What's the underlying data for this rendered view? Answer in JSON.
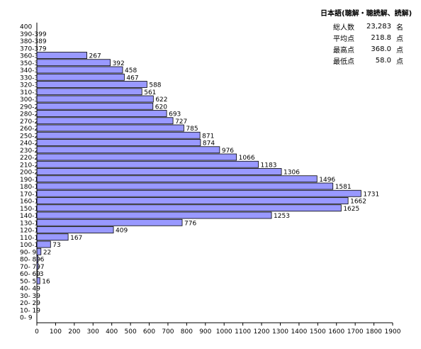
{
  "stats": {
    "title": "日本語(聴解・聴読解、読解)",
    "rows": [
      {
        "label": "総人数",
        "value": "23,283",
        "unit": "名"
      },
      {
        "label": "平均点",
        "value": "218.8",
        "unit": "点"
      },
      {
        "label": "最高点",
        "value": "368.0",
        "unit": "点"
      },
      {
        "label": "最低点",
        "value": "58.0",
        "unit": "点"
      }
    ]
  },
  "chart_data": {
    "type": "bar",
    "orientation": "horizontal",
    "title": "",
    "xlabel": "",
    "ylabel": "",
    "xlim": [
      0,
      1900
    ],
    "xticks": [
      0,
      100,
      200,
      300,
      400,
      500,
      600,
      700,
      800,
      900,
      1000,
      1100,
      1200,
      1300,
      1400,
      1500,
      1600,
      1700,
      1800,
      1900
    ],
    "grid": false,
    "bar_color": "#9999ff",
    "bar_stroke": "#000000",
    "categories": [
      "400",
      "390-399",
      "380-389",
      "370-379",
      "360-369",
      "350-359",
      "340-349",
      "330-339",
      "320-329",
      "310-319",
      "300-309",
      "290-299",
      "280-289",
      "270-279",
      "260-269",
      "250-259",
      "240-249",
      "230-239",
      "220-229",
      "210-219",
      "200-209",
      "190-199",
      "180-189",
      "170-179",
      "160-169",
      "150-159",
      "140-149",
      "130-139",
      "120-129",
      "110-119",
      "100-109",
      "90- 99",
      "80- 89",
      "70- 79",
      "60- 69",
      "50- 59",
      "40- 49",
      "30- 39",
      "20- 29",
      "10- 19",
      "0- 9"
    ],
    "values": [
      null,
      null,
      null,
      null,
      267,
      392,
      458,
      467,
      588,
      561,
      622,
      620,
      693,
      727,
      785,
      871,
      874,
      976,
      1066,
      1183,
      1306,
      1496,
      1581,
      1731,
      1662,
      1625,
      1253,
      776,
      409,
      167,
      73,
      22,
      6,
      7,
      3,
      16,
      null,
      null,
      null,
      null,
      null
    ]
  }
}
